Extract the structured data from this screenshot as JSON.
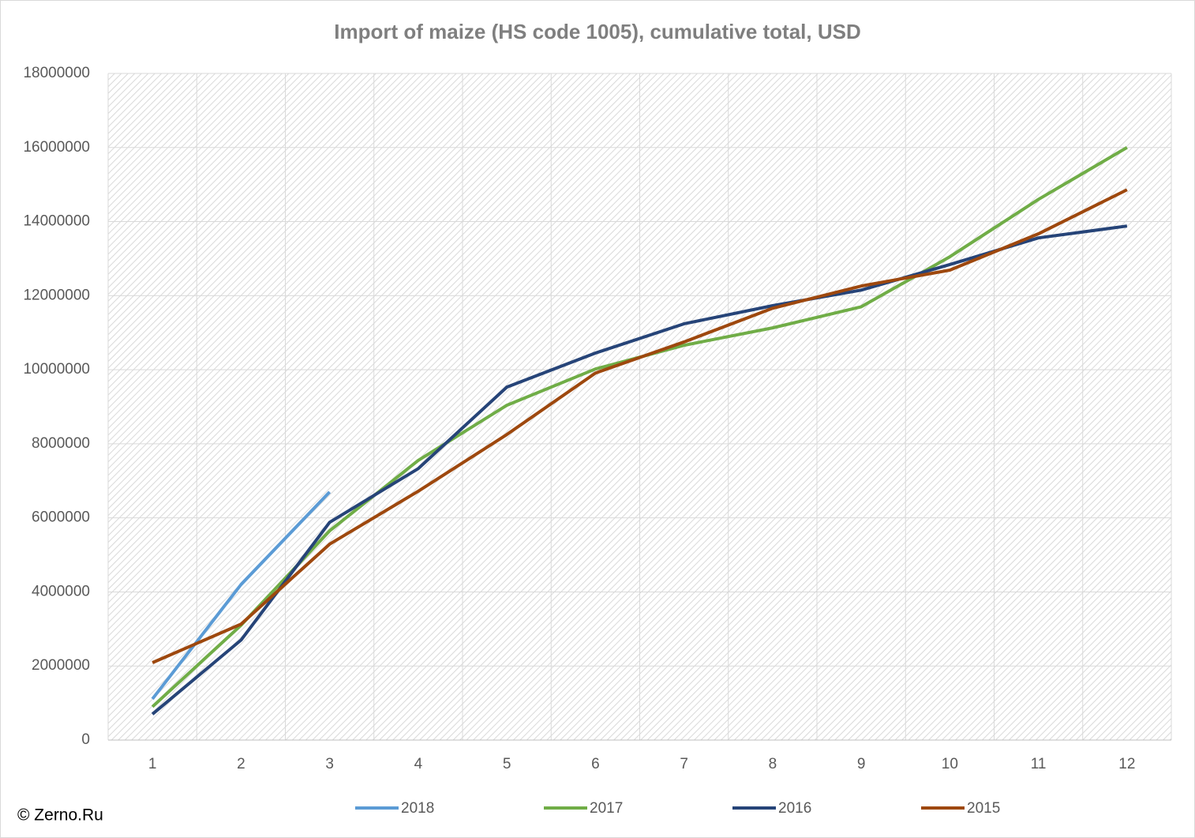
{
  "chart_data": {
    "type": "line",
    "title": "Import of maize (HS code 1005), cumulative total, USD",
    "categories": [
      "1",
      "2",
      "3",
      "4",
      "5",
      "6",
      "7",
      "8",
      "9",
      "10",
      "11",
      "12"
    ],
    "series": [
      {
        "name": "2018",
        "color": "#5b9bd5",
        "values": [
          1110000,
          4200000,
          6700000,
          null,
          null,
          null,
          null,
          null,
          null,
          null,
          null,
          null
        ]
      },
      {
        "name": "2017",
        "color": "#70ad47",
        "values": [
          900000,
          3100000,
          5650000,
          7550000,
          9040000,
          10020000,
          10660000,
          11130000,
          11700000,
          13050000,
          14600000,
          16000000
        ]
      },
      {
        "name": "2016",
        "color": "#264478",
        "values": [
          700000,
          2700000,
          5880000,
          7330000,
          9530000,
          10450000,
          11240000,
          11730000,
          12150000,
          12840000,
          13560000,
          13880000
        ]
      },
      {
        "name": "2015",
        "color": "#9e480e",
        "values": [
          2090000,
          3130000,
          5290000,
          6720000,
          8250000,
          9910000,
          10750000,
          11660000,
          12260000,
          12690000,
          13670000,
          14860000
        ]
      }
    ],
    "ylim": [
      0,
      18000000
    ],
    "yticks": [
      0,
      2000000,
      4000000,
      6000000,
      8000000,
      10000000,
      12000000,
      14000000,
      16000000,
      18000000
    ],
    "grid": true,
    "legend": "bottom",
    "credit": "© Zerno.Ru"
  }
}
